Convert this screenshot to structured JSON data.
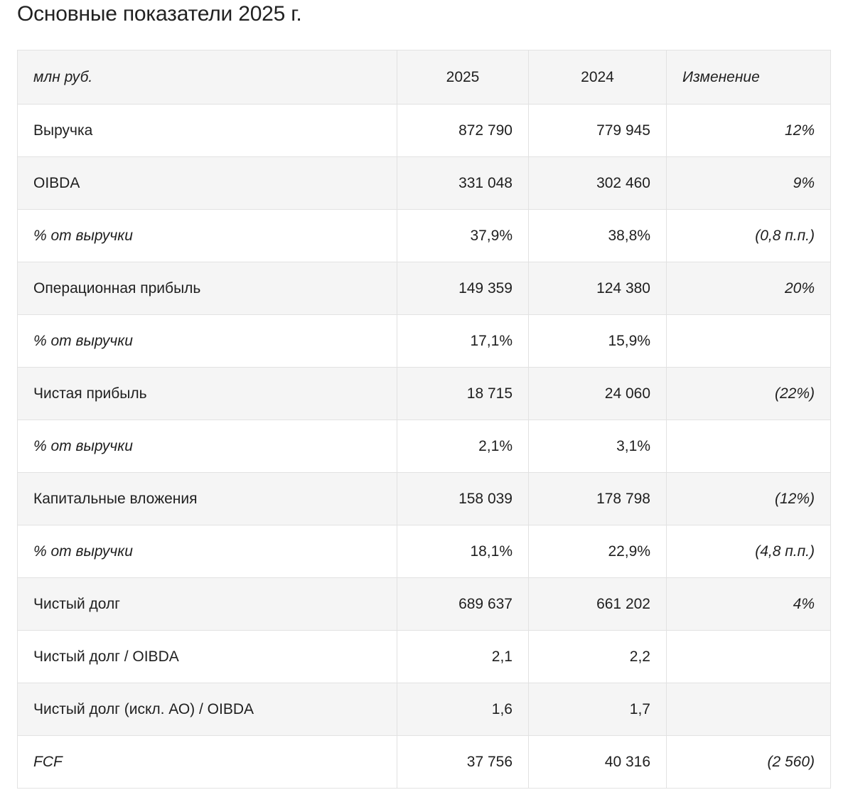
{
  "page": {
    "title": "Основные показатели 2025 г."
  },
  "table": {
    "headers": {
      "label": "млн руб.",
      "y2025": "2025",
      "y2024": "2024",
      "change": "Изменение"
    },
    "rows": [
      {
        "label": "Выручка",
        "y2025": "872 790",
        "y2024": "779 945",
        "change": "12%",
        "italic": false
      },
      {
        "label": "OIBDA",
        "y2025": "331 048",
        "y2024": "302 460",
        "change": "9%",
        "italic": false
      },
      {
        "label": "% от выручки",
        "y2025": "37,9%",
        "y2024": "38,8%",
        "change": "(0,8 п.п.)",
        "italic": true
      },
      {
        "label": "Операционная прибыль",
        "y2025": "149 359",
        "y2024": "124 380",
        "change": "20%",
        "italic": false
      },
      {
        "label": "% от выручки",
        "y2025": "17,1%",
        "y2024": "15,9%",
        "change": "",
        "italic": true
      },
      {
        "label": "Чистая прибыль",
        "y2025": "18 715",
        "y2024": "24 060",
        "change": "(22%)",
        "italic": false
      },
      {
        "label": "% от выручки",
        "y2025": "2,1%",
        "y2024": "3,1%",
        "change": "",
        "italic": true
      },
      {
        "label": "Капитальные вложения",
        "y2025": "158 039",
        "y2024": "178 798",
        "change": "(12%)",
        "italic": false
      },
      {
        "label": "% от выручки",
        "y2025": "18,1%",
        "y2024": "22,9%",
        "change": "(4,8 п.п.)",
        "italic": true
      },
      {
        "label": "Чистый долг",
        "y2025": "689 637",
        "y2024": "661 202",
        "change": "4%",
        "italic": false
      },
      {
        "label": "Чистый долг / OIBDA",
        "y2025": "2,1",
        "y2024": "2,2",
        "change": "",
        "italic": false
      },
      {
        "label": "Чистый долг (искл. АО) / OIBDA",
        "y2025": "1,6",
        "y2024": "1,7",
        "change": "",
        "italic": false
      },
      {
        "label": "FCF",
        "y2025": "37 756",
        "y2024": "40 316",
        "change": "(2 560)",
        "italic": true
      }
    ]
  }
}
